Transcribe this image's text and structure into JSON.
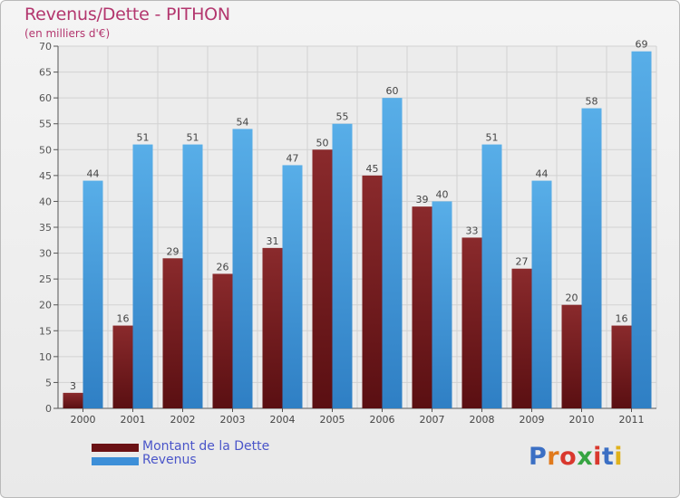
{
  "header": {
    "title": "Revenus/Dette - PITHON",
    "subtitle": "(en milliers d'€)"
  },
  "chart_data": {
    "type": "bar",
    "categories": [
      "2000",
      "2001",
      "2002",
      "2003",
      "2004",
      "2005",
      "2006",
      "2007",
      "2008",
      "2009",
      "2010",
      "2011"
    ],
    "series": [
      {
        "name": "Montant de la Dette",
        "color": "#7a1f22",
        "values": [
          3,
          16,
          29,
          26,
          31,
          50,
          45,
          39,
          33,
          27,
          20,
          16
        ]
      },
      {
        "name": "Revenus",
        "color": "#3d8fd8",
        "values": [
          44,
          51,
          51,
          54,
          47,
          55,
          60,
          40,
          51,
          44,
          58,
          69
        ]
      }
    ],
    "ylim": [
      0,
      70
    ],
    "yticks": [
      0,
      5,
      10,
      15,
      20,
      25,
      30,
      35,
      40,
      45,
      50,
      55,
      60,
      65,
      70
    ],
    "grid": true,
    "legend": "bottom-left"
  },
  "legend": {
    "debt_label": "Montant de la Dette",
    "revenue_label": "Revenus",
    "debt_color": "#7a1f22",
    "revenue_color": "#3d8fd8"
  },
  "logo": {
    "letters": [
      "P",
      "r",
      "o",
      "x",
      "i",
      "t",
      "i"
    ]
  }
}
